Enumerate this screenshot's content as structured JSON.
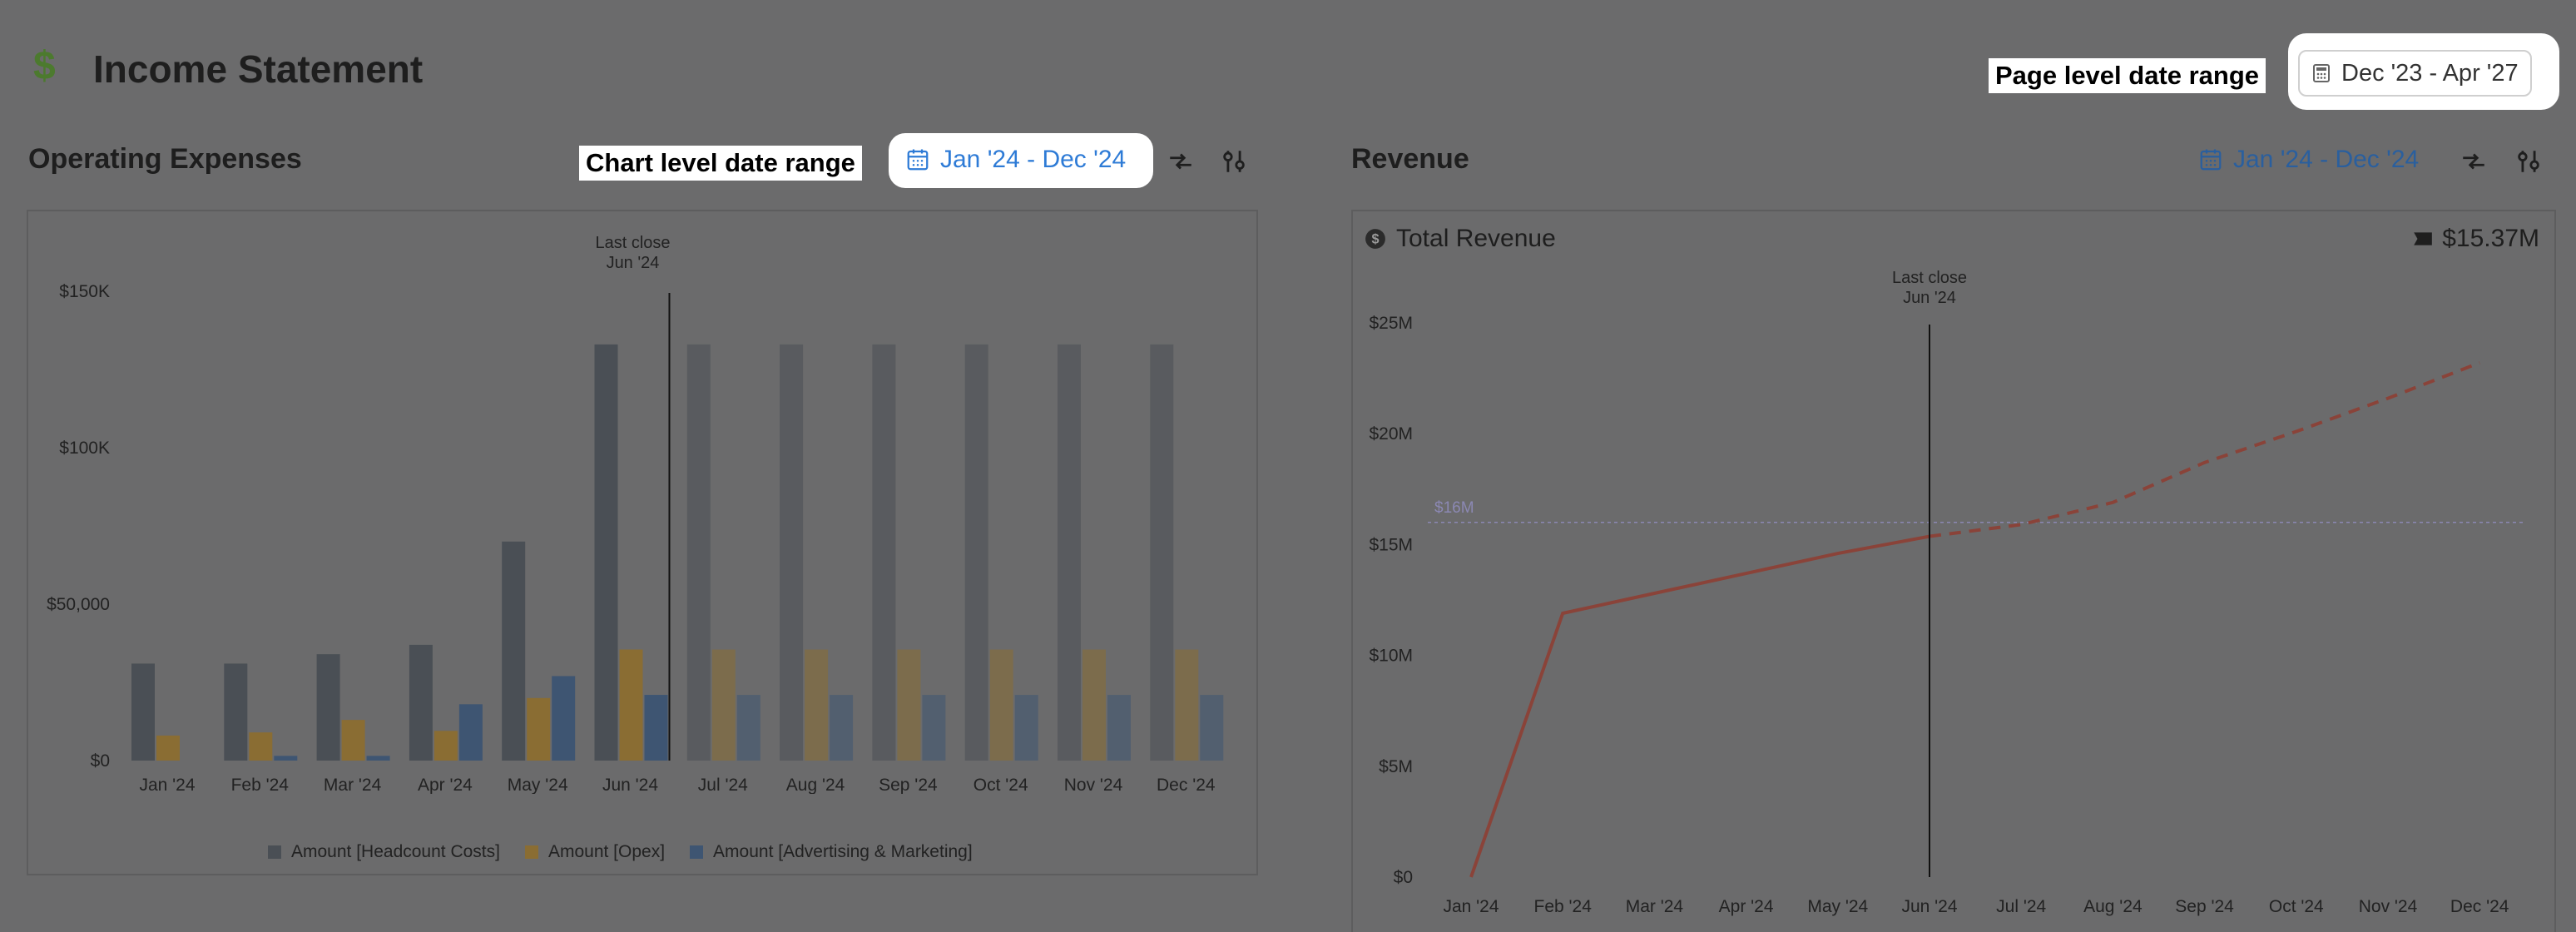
{
  "header": {
    "title": "Income Statement",
    "icon": "dollar-icon"
  },
  "callouts": {
    "page_level": "Page level date range",
    "chart_level": "Chart level date range"
  },
  "page_date_range": "Dec '23 - Apr '27",
  "opex": {
    "title": "Operating Expenses",
    "date_range": "Jan '24 - Dec '24",
    "last_close_line1": "Last close",
    "last_close_line2": "Jun '24",
    "legend": [
      {
        "label": "Amount [Headcount Costs]",
        "color": "#4a4f55"
      },
      {
        "label": "Amount [Opex]",
        "color": "#8a6d33"
      },
      {
        "label": "Amount [Advertising & Marketing]",
        "color": "#3e5572"
      }
    ]
  },
  "revenue": {
    "title": "Revenue",
    "date_range": "Jan '24 - Dec '24",
    "card_title": "Total Revenue",
    "total": "$15.37M",
    "last_close_line1": "Last close",
    "last_close_line2": "Jun '24",
    "ref_label": "$16M"
  },
  "chart_data": [
    {
      "type": "bar",
      "categories": [
        "Jan '24",
        "Feb '24",
        "Mar '24",
        "Apr '24",
        "May '24",
        "Jun '24",
        "Jul '24",
        "Aug '24",
        "Sep '24",
        "Oct '24",
        "Nov '24",
        "Dec '24"
      ],
      "ylim": [
        0,
        150000
      ],
      "yticks": [
        0,
        50000,
        100000,
        150000
      ],
      "ytick_labels": [
        "$0",
        "$50,000",
        "$100K",
        "$150K"
      ],
      "last_close_index": 5,
      "series": [
        {
          "name": "Amount [Headcount Costs]",
          "values": [
            31000,
            31000,
            34000,
            37000,
            70000,
            133000,
            133000,
            133000,
            133000,
            133000,
            133000,
            133000
          ]
        },
        {
          "name": "Amount [Opex]",
          "values": [
            8000,
            9000,
            13000,
            9500,
            20000,
            35500,
            35500,
            35500,
            35500,
            35500,
            35500,
            35500
          ]
        },
        {
          "name": "Amount [Advertising & Marketing]",
          "values": [
            0,
            1500,
            1500,
            18000,
            27000,
            21000,
            21000,
            21000,
            21000,
            21000,
            21000,
            21000
          ]
        }
      ],
      "grid": false,
      "legend_position": "bottom"
    },
    {
      "type": "line",
      "categories": [
        "Jan '24",
        "Feb '24",
        "Mar '24",
        "Apr '24",
        "May '24",
        "Jun '24",
        "Jul '24",
        "Aug '24",
        "Sep '24",
        "Oct '24",
        "Nov '24",
        "Dec '24"
      ],
      "ylim": [
        0,
        25000000
      ],
      "yticks": [
        0,
        5000000,
        10000000,
        15000000,
        20000000,
        25000000
      ],
      "ytick_labels": [
        "$0",
        "$5M",
        "$10M",
        "$15M",
        "$20M",
        "$25M"
      ],
      "last_close_index": 5,
      "reference_line": 16000000,
      "series": [
        {
          "name": "Total Revenue",
          "values": [
            0,
            11900000,
            12800000,
            13700000,
            14600000,
            15370000,
            15900000,
            16900000,
            18700000,
            20100000,
            21600000,
            23200000
          ]
        }
      ],
      "grid": false,
      "legend_position": "none"
    }
  ]
}
